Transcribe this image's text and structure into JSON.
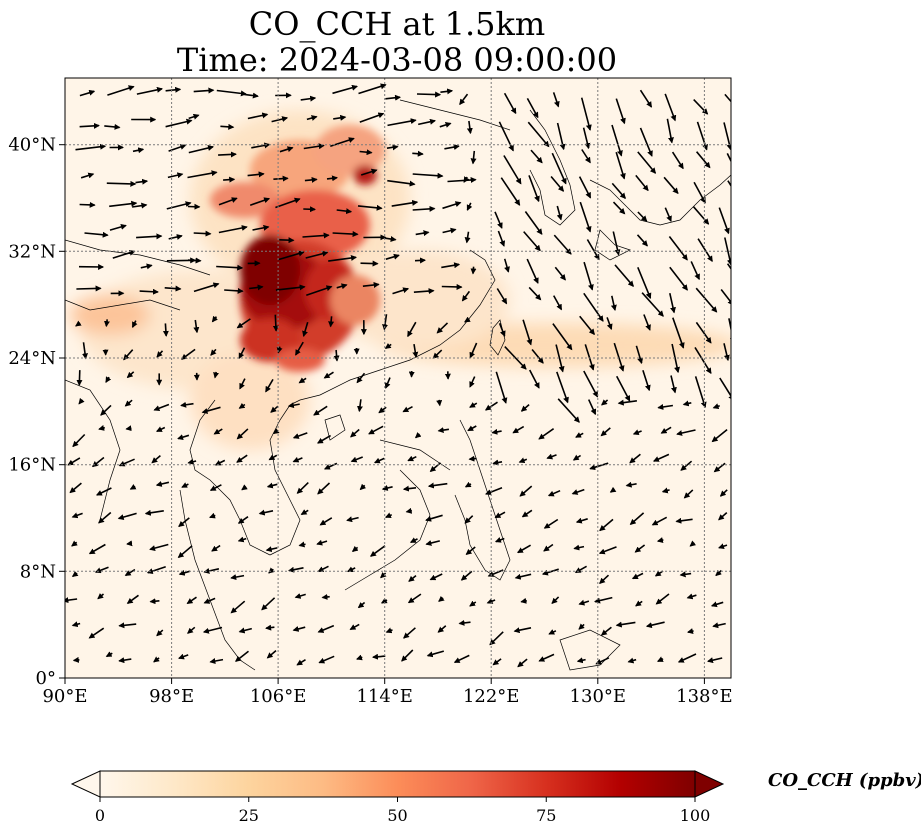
{
  "title": {
    "line1": "CO_CCH at 1.5km",
    "line2": "Time: 2024-03-08 09:00:00"
  },
  "map": {
    "variable": "CO_CCH",
    "level": "1.5km",
    "lon_range": [
      90,
      140
    ],
    "lat_range": [
      0,
      45
    ],
    "lon_ticks": [
      "90°E",
      "98°E",
      "106°E",
      "114°E",
      "122°E",
      "130°E",
      "138°E"
    ],
    "lat_ticks": [
      "0°",
      "8°N",
      "16°N",
      "24°N",
      "32°N",
      "40°N"
    ],
    "gridlines": true,
    "coastlines": true,
    "wind_vectors": true
  },
  "colorbar": {
    "label": "CO_CCH (ppbv)",
    "ticks": [
      "0",
      "25",
      "50",
      "75",
      "100"
    ],
    "range": [
      0,
      100
    ],
    "extend": "both",
    "colormap": "OrRd",
    "colors": [
      "#fff7ec",
      "#fee8c8",
      "#fdd49e",
      "#fdbb84",
      "#fc8d59",
      "#ef6548",
      "#d7301f",
      "#b30000",
      "#7f0000"
    ]
  }
}
